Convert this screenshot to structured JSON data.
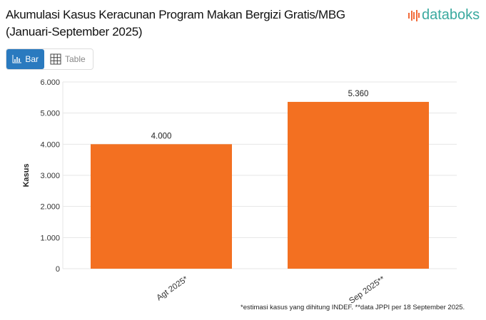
{
  "title": "Akumulasi Kasus Keracunan Program Makan Bergizi Gratis/MBG (Januari-September 2025)",
  "logo": "databoks",
  "toggle": {
    "bar_label": "Bar",
    "table_label": "Table",
    "active": "Bar"
  },
  "note": "*estimasi kasus yang dihitung INDEF. **data JPPI per 18 September 2025.",
  "colors": {
    "bar": "#f37021",
    "accent": "#2a7abf",
    "logo": "#3aa99f"
  },
  "chart_data": {
    "type": "bar",
    "title": "Akumulasi Kasus Keracunan Program Makan Bergizi Gratis/MBG (Januari-September 2025)",
    "categories": [
      "Agt 2025*",
      "Sep 2025**"
    ],
    "values": [
      4000,
      5360
    ],
    "value_labels": [
      "4.000",
      "5.360"
    ],
    "xlabel": "",
    "ylabel": "Kasus",
    "ylim": [
      0,
      6000
    ],
    "yticks": [
      0,
      1000,
      2000,
      3000,
      4000,
      5000,
      6000
    ],
    "ytick_labels": [
      "0",
      "1.000",
      "2.000",
      "3.000",
      "4.000",
      "5.000",
      "6.000"
    ],
    "grid": true,
    "legend": "none"
  }
}
